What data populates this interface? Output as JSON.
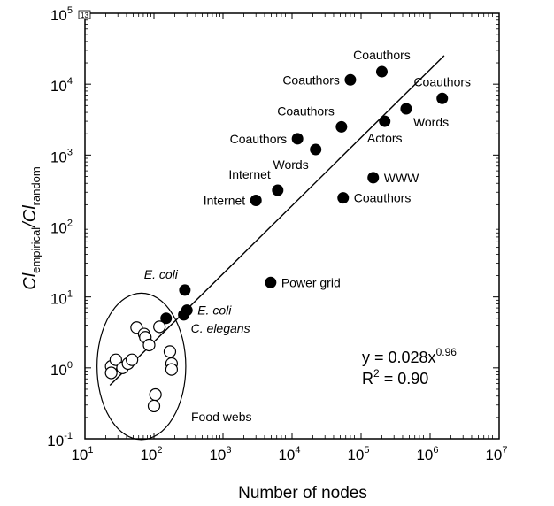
{
  "chart_data": {
    "type": "scatter",
    "title": "",
    "xlabel": "Number of nodes",
    "ylabel": {
      "main": "Cl",
      "num_sub": "empirical",
      "slash": "/",
      "den": "Cl",
      "den_sub": "random"
    },
    "x_scale": "log",
    "y_scale": "log",
    "xlim": [
      10,
      10000000
    ],
    "ylim": [
      0.1,
      100000
    ],
    "x_ticks": [
      {
        "base": "10",
        "exp": "1",
        "value": 10
      },
      {
        "base": "10",
        "exp": "2",
        "value": 100
      },
      {
        "base": "10",
        "exp": "3",
        "value": 1000
      },
      {
        "base": "10",
        "exp": "4",
        "value": 10000
      },
      {
        "base": "10",
        "exp": "5",
        "value": 100000
      },
      {
        "base": "10",
        "exp": "6",
        "value": 1000000
      },
      {
        "base": "10",
        "exp": "7",
        "value": 10000000
      }
    ],
    "y_ticks": [
      {
        "base": "10",
        "exp": "-1",
        "value": 0.1
      },
      {
        "base": "10",
        "exp": "0",
        "value": 1
      },
      {
        "base": "10",
        "exp": "1",
        "value": 10
      },
      {
        "base": "10",
        "exp": "2",
        "value": 100
      },
      {
        "base": "10",
        "exp": "3",
        "value": 1000
      },
      {
        "base": "10",
        "exp": "4",
        "value": 10000
      },
      {
        "base": "10",
        "exp": "5",
        "value": 100000
      }
    ],
    "grid": false,
    "series": [
      {
        "marker": "filled-circle",
        "points": [
          {
            "x": 200000,
            "y": 15000,
            "label": "Coauthors",
            "label_pos": "above"
          },
          {
            "x": 70000,
            "y": 11500,
            "label": "Coauthors",
            "label_pos": "left"
          },
          {
            "x": 1500000,
            "y": 6300,
            "label": "Coauthors",
            "label_pos": "above"
          },
          {
            "x": 450000,
            "y": 4500,
            "label": "Words",
            "label_pos": "below-right"
          },
          {
            "x": 220000,
            "y": 3000,
            "label": "Actors",
            "label_pos": "below"
          },
          {
            "x": 52000,
            "y": 2500,
            "label": "Coauthors",
            "label_pos": "above-left"
          },
          {
            "x": 12000,
            "y": 1700,
            "label": "Coauthors",
            "label_pos": "left"
          },
          {
            "x": 22000,
            "y": 1200,
            "label": "Words",
            "label_pos": "below-left"
          },
          {
            "x": 150000,
            "y": 480,
            "label": "WWW",
            "label_pos": "right"
          },
          {
            "x": 6200,
            "y": 320,
            "label": "Internet",
            "label_pos": "above-left"
          },
          {
            "x": 3000,
            "y": 230,
            "label": "Internet",
            "label_pos": "left"
          },
          {
            "x": 55000,
            "y": 250,
            "label": "Coauthors",
            "label_pos": "right"
          },
          {
            "x": 4900,
            "y": 16,
            "label": "Power grid",
            "label_pos": "right"
          },
          {
            "x": 280,
            "y": 12.5,
            "label": "E. coli",
            "label_pos": "above-left",
            "italic": true
          },
          {
            "x": 300,
            "y": 6.5,
            "label": "E. coli",
            "label_pos": "right",
            "italic": true
          },
          {
            "x": 270,
            "y": 5.6,
            "label": "C. elegans",
            "label_pos": "below-right",
            "italic": true
          },
          {
            "x": 150,
            "y": 5.0,
            "label": "",
            "label_pos": "none"
          }
        ]
      },
      {
        "marker": "open-circle",
        "name": "Food webs",
        "points": [
          {
            "x": 24,
            "y": 1.05
          },
          {
            "x": 24,
            "y": 0.85
          },
          {
            "x": 28,
            "y": 1.3
          },
          {
            "x": 35,
            "y": 1.0
          },
          {
            "x": 42,
            "y": 1.15
          },
          {
            "x": 48,
            "y": 1.3
          },
          {
            "x": 56,
            "y": 3.7
          },
          {
            "x": 72,
            "y": 3.0
          },
          {
            "x": 75,
            "y": 2.7
          },
          {
            "x": 85,
            "y": 2.1
          },
          {
            "x": 105,
            "y": 0.42
          },
          {
            "x": 100,
            "y": 0.29
          },
          {
            "x": 120,
            "y": 3.8
          },
          {
            "x": 170,
            "y": 1.7
          },
          {
            "x": 180,
            "y": 1.15
          },
          {
            "x": 180,
            "y": 0.95
          }
        ]
      }
    ],
    "fit_line": {
      "a": 0.028,
      "b": 0.96,
      "x_range": [
        23,
        1600000
      ]
    },
    "annotations": {
      "equation": {
        "prefix": "y = 0.028x",
        "exponent": "0.96"
      },
      "r2": {
        "prefix": "R",
        "sup": "2",
        "suffix": " = 0.90"
      },
      "food_webs_label": "Food webs",
      "corner_mark": "13"
    },
    "ellipse_around": "Food webs"
  }
}
